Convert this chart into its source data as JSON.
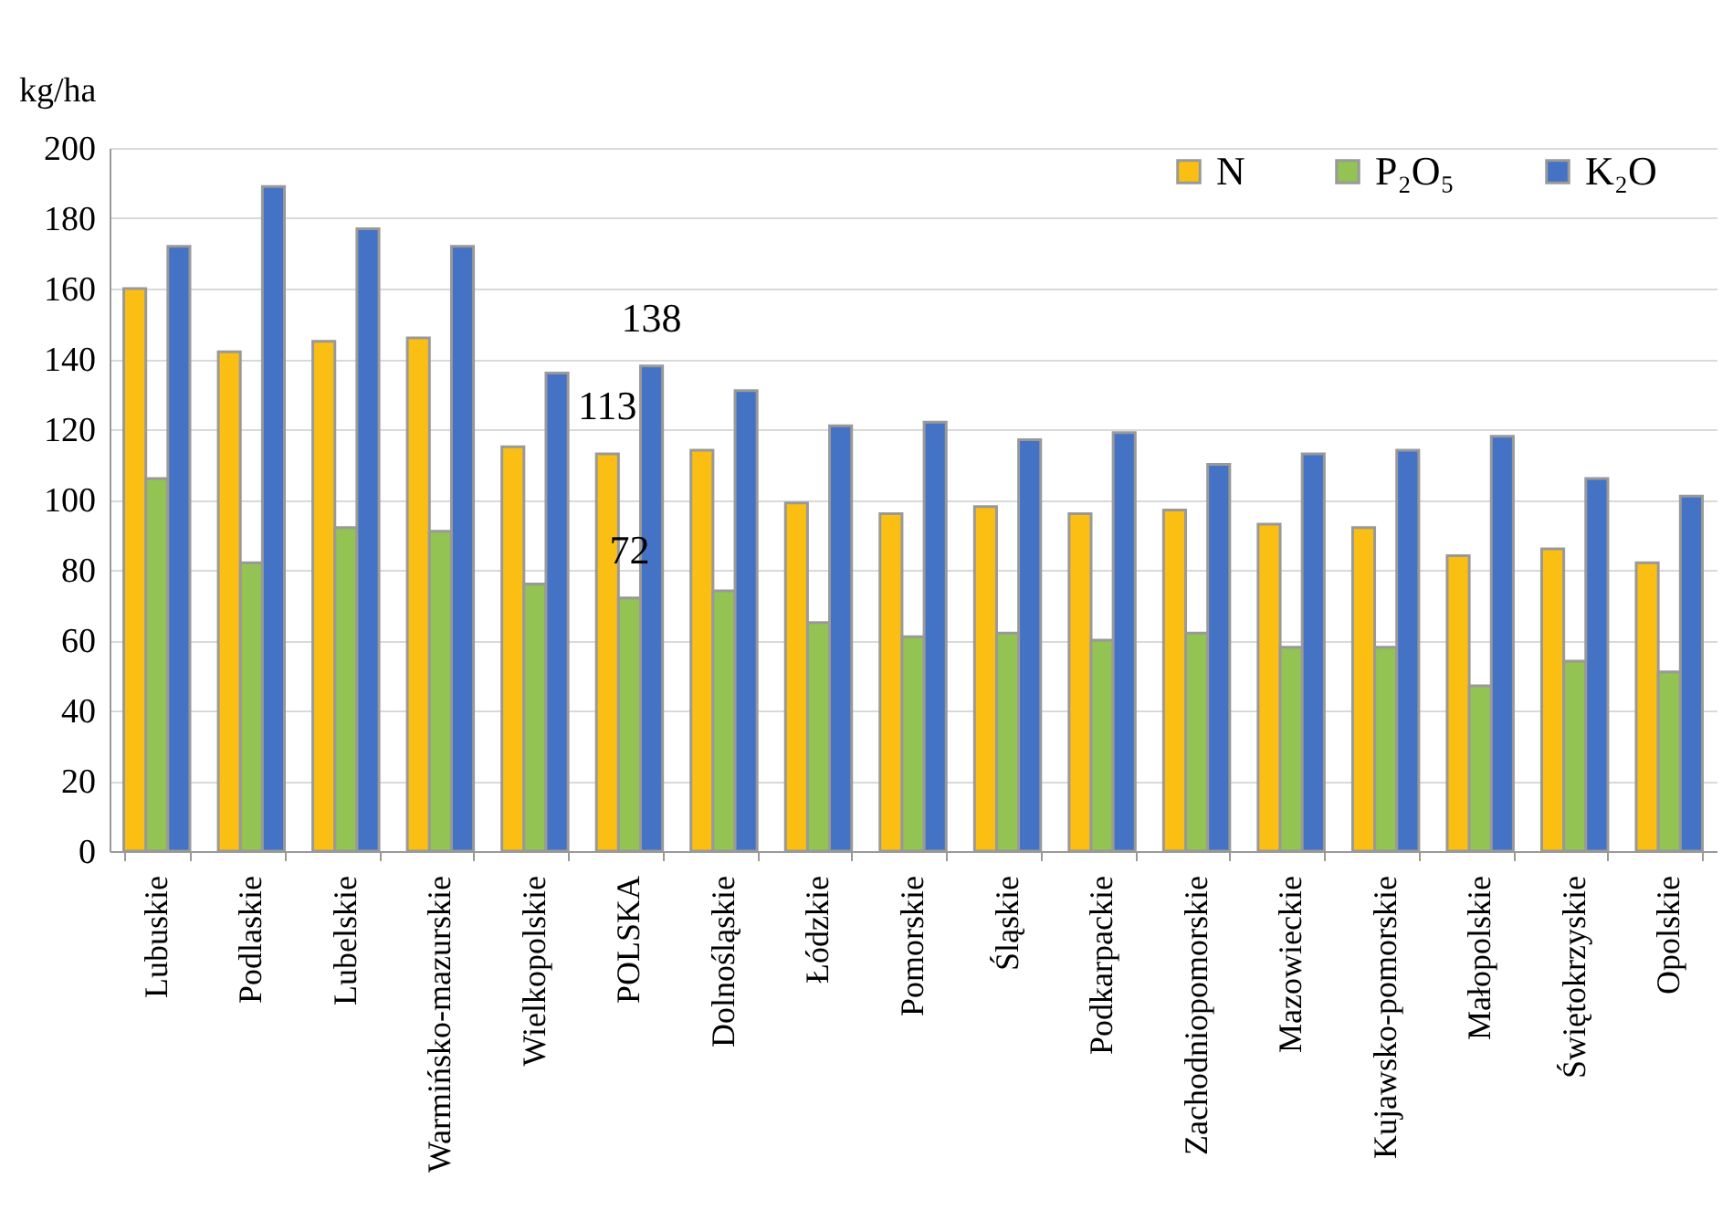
{
  "chart_data": {
    "type": "bar",
    "ylabel": "kg/ha",
    "categories": [
      "Lubuskie",
      "Podlaskie",
      "Lubelskie",
      "Warmińsko-mazurskie",
      "Wielkopolskie",
      "POLSKA",
      "Dolnośląskie",
      "Łódzkie",
      "Pomorskie",
      "Śląskie",
      "Podkarpackie",
      "Zachodniopomorskie",
      "Mazowieckie",
      "Kujawsko-pomorskie",
      "Małopolskie",
      "Świętokrzyskie",
      "Opolskie"
    ],
    "series": [
      {
        "name": "N",
        "color": "#fbbf14",
        "values": [
          160,
          142,
          145,
          146,
          115,
          113,
          114,
          99,
          96,
          98,
          96,
          97,
          93,
          92,
          84,
          86,
          82
        ],
        "value_labels": [
          null,
          null,
          null,
          null,
          null,
          "113",
          null,
          null,
          null,
          null,
          null,
          null,
          null,
          null,
          null,
          null,
          null
        ]
      },
      {
        "name": "P₂O₅",
        "color": "#92c353",
        "values": [
          106,
          82,
          92,
          91,
          76,
          72,
          74,
          65,
          61,
          62,
          60,
          62,
          58,
          58,
          47,
          54,
          51
        ],
        "value_labels": [
          null,
          null,
          null,
          null,
          null,
          "72",
          null,
          null,
          null,
          null,
          null,
          null,
          null,
          null,
          null,
          null,
          null
        ]
      },
      {
        "name": "K₂O",
        "color": "#4472c4",
        "values": [
          172,
          189,
          177,
          172,
          136,
          138,
          131,
          121,
          122,
          117,
          119,
          110,
          113,
          114,
          118,
          106,
          101
        ],
        "value_labels": [
          null,
          null,
          null,
          null,
          null,
          "138",
          null,
          null,
          null,
          null,
          null,
          null,
          null,
          null,
          null,
          null,
          null
        ]
      }
    ],
    "ylim": [
      0,
      200
    ],
    "yticks": [
      0,
      20,
      40,
      60,
      80,
      100,
      120,
      140,
      160,
      180,
      200
    ],
    "grid": "y",
    "legend": "top right"
  }
}
